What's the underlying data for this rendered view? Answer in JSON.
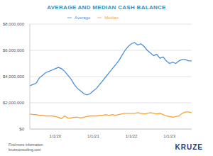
{
  "chart_data": {
    "type": "line",
    "title": "AVERAGE AND MEDIAN CASH BALANCE",
    "categories": [
      null,
      null,
      null,
      null,
      null,
      null,
      null,
      null,
      "1/1/20",
      null,
      null,
      null,
      null,
      null,
      null,
      null,
      null,
      null,
      null,
      null,
      "1/1/21",
      null,
      null,
      null,
      null,
      null,
      null,
      null,
      null,
      null,
      null,
      null,
      "1/1/22",
      null,
      null,
      null,
      null,
      null,
      null,
      null,
      null,
      null,
      null,
      null,
      "1/1/23",
      null,
      null,
      null,
      null,
      null,
      null,
      null
    ],
    "series": [
      {
        "name": "Average",
        "color": "#4a8fd8",
        "values": [
          3300000,
          3400000,
          3500000,
          3900000,
          4100000,
          4300000,
          4400000,
          4500000,
          4600000,
          4700000,
          4600000,
          4400000,
          4100000,
          3800000,
          3400000,
          3100000,
          2900000,
          2700000,
          2600000,
          2700000,
          2900000,
          3100000,
          3400000,
          3700000,
          4000000,
          4300000,
          4600000,
          4900000,
          5200000,
          5600000,
          6000000,
          6300000,
          6500000,
          6600000,
          6400000,
          6500000,
          6300000,
          6000000,
          5800000,
          5600000,
          5700000,
          5400000,
          5500000,
          5200000,
          5000000,
          5100000,
          5000000,
          5200000,
          5300000,
          5300000,
          5200000,
          5200000
        ]
      },
      {
        "name": "Median",
        "color": "#f5a33a",
        "values": [
          1150000,
          1100000,
          1100000,
          1050000,
          1050000,
          1000000,
          1000000,
          1000000,
          950000,
          900000,
          800000,
          1000000,
          850000,
          850000,
          900000,
          900000,
          850000,
          900000,
          950000,
          1000000,
          1000000,
          1000000,
          1050000,
          1050000,
          1100000,
          1050000,
          1100000,
          1050000,
          1100000,
          1150000,
          1200000,
          1200000,
          1200000,
          1200000,
          1250000,
          1200000,
          1150000,
          1200000,
          1250000,
          1200000,
          1150000,
          1200000,
          1100000,
          1000000,
          950000,
          900000,
          950000,
          1000000,
          1200000,
          1300000,
          1300000,
          1250000
        ]
      }
    ],
    "ylim": [
      0,
      8000000
    ],
    "yticks": [
      {
        "value": 0,
        "label": "$0"
      },
      {
        "value": 2000000,
        "label": "$2,000,000"
      },
      {
        "value": 4000000,
        "label": "$4,000,000"
      },
      {
        "value": 6000000,
        "label": "$6,000,000"
      },
      {
        "value": 8000000,
        "label": "$8,000,000"
      }
    ],
    "grid": true,
    "legend": "top",
    "footer": [
      "Find more information",
      "kruzeconsulting.com"
    ],
    "logo": "KRUZE"
  }
}
